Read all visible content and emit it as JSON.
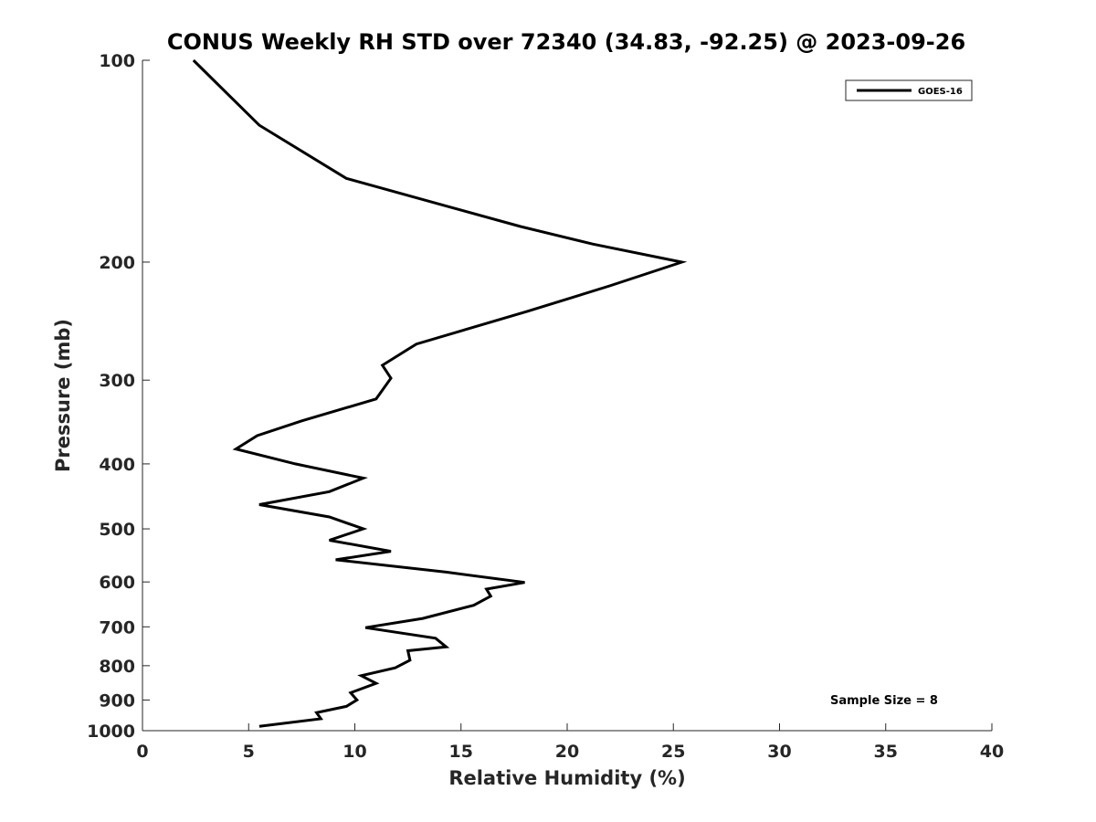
{
  "chart_data": {
    "type": "line",
    "title": "CONUS Weekly RH STD over 72340 (34.83, -92.25) @ 2023-09-26",
    "xlabel": "Relative Humidity (%)",
    "ylabel": "Pressure (mb)",
    "xlim": [
      0,
      40
    ],
    "ylim": [
      100,
      1000
    ],
    "y_scale": "log",
    "y_direction": "reversed",
    "x_ticks": [
      0,
      5,
      10,
      15,
      20,
      25,
      30,
      35,
      40
    ],
    "y_ticks": [
      100,
      200,
      300,
      400,
      500,
      600,
      700,
      800,
      900,
      1000
    ],
    "grid": false,
    "legend_position": "top-right",
    "series": [
      {
        "name": "GOES-16",
        "color": "#000000",
        "points": [
          [
            2.4,
            100
          ],
          [
            5.5,
            125
          ],
          [
            9.6,
            150
          ],
          [
            14.3,
            165
          ],
          [
            17.8,
            177
          ],
          [
            21.2,
            188
          ],
          [
            25.4,
            200
          ],
          [
            22.0,
            217
          ],
          [
            18.1,
            237
          ],
          [
            12.9,
            265
          ],
          [
            11.3,
            285
          ],
          [
            11.7,
            298
          ],
          [
            11.0,
            320
          ],
          [
            7.5,
            345
          ],
          [
            5.4,
            363
          ],
          [
            4.4,
            380
          ],
          [
            7.2,
            400
          ],
          [
            10.4,
            420
          ],
          [
            8.8,
            440
          ],
          [
            5.5,
            460
          ],
          [
            8.8,
            480
          ],
          [
            10.4,
            500
          ],
          [
            8.8,
            520
          ],
          [
            11.7,
            540
          ],
          [
            9.1,
            556
          ],
          [
            14.3,
            580
          ],
          [
            18.0,
            601
          ],
          [
            16.2,
            615
          ],
          [
            16.4,
            630
          ],
          [
            15.6,
            650
          ],
          [
            13.2,
            680
          ],
          [
            10.5,
            702
          ],
          [
            13.8,
            728
          ],
          [
            14.3,
            750
          ],
          [
            12.5,
            760
          ],
          [
            12.6,
            785
          ],
          [
            11.9,
            806
          ],
          [
            10.3,
            828
          ],
          [
            11.0,
            850
          ],
          [
            9.8,
            878
          ],
          [
            10.1,
            900
          ],
          [
            9.6,
            920
          ],
          [
            8.2,
            940
          ],
          [
            8.4,
            960
          ],
          [
            5.5,
            985
          ]
        ]
      }
    ],
    "annotation": "Sample Size = 8"
  }
}
